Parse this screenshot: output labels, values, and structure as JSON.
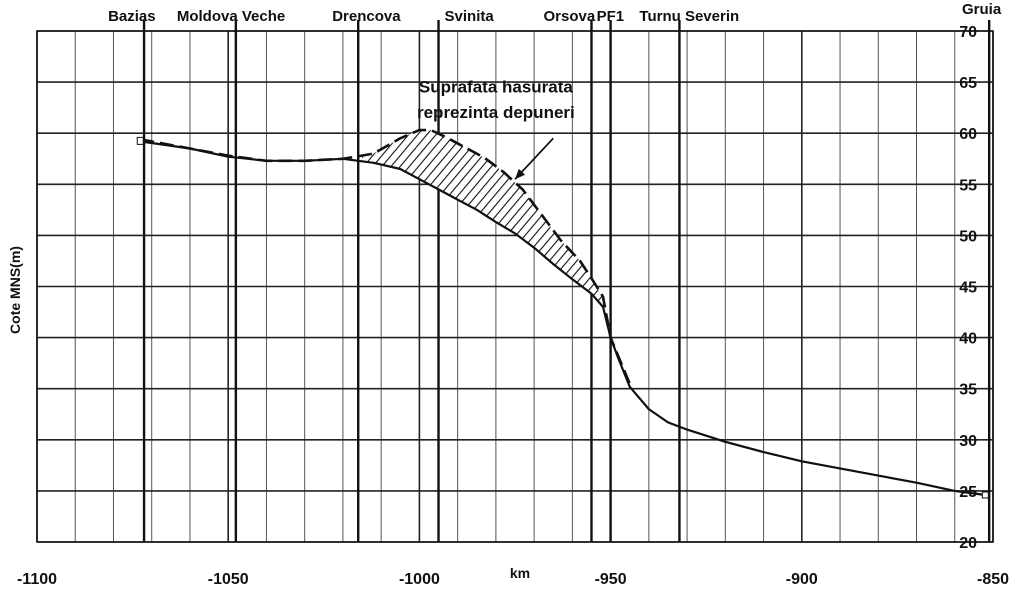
{
  "chart_data": {
    "type": "line",
    "title": "",
    "xlabel": "km",
    "ylabel": "Cote MNS(m)",
    "xlim": [
      -1100,
      -850
    ],
    "ylim": [
      20,
      70
    ],
    "x_ticks": [
      -1100,
      -1050,
      -1000,
      -950,
      -900,
      -850
    ],
    "y_ticks": [
      20,
      25,
      30,
      35,
      40,
      45,
      50,
      55,
      60,
      65,
      70
    ],
    "x_tick_labels": [
      "-1100",
      "-1050",
      "-1000",
      "-950",
      "-900",
      "-850"
    ],
    "y_tick_labels": [
      "20",
      "25",
      "30",
      "35",
      "40",
      "45",
      "50",
      "55",
      "60",
      "65",
      "70"
    ],
    "grid": true,
    "stations": [
      {
        "name": "Bazias",
        "km": -1072
      },
      {
        "name": "Moldova Veche",
        "km": -1048
      },
      {
        "name": "Drencova",
        "km": -1016
      },
      {
        "name": "Svinita",
        "km": -995
      },
      {
        "name": "Orsova",
        "km": -955
      },
      {
        "name": "PF1",
        "km": -950
      },
      {
        "name": "Turnu Severin",
        "km": -932
      },
      {
        "name": "Gruia",
        "km": -851
      }
    ],
    "series": [
      {
        "name": "",
        "style": "solid",
        "x": [
          -1073,
          -1060,
          -1050,
          -1040,
          -1030,
          -1020,
          -1012,
          -1005,
          -1000,
          -995,
          -990,
          -985,
          -980,
          -975,
          -970,
          -965,
          -960,
          -955,
          -952,
          -950,
          -948,
          -945,
          -940,
          -935,
          -930,
          -920,
          -910,
          -900,
          -890,
          -880,
          -870,
          -860,
          -852
        ],
        "y": [
          59.2,
          58.5,
          57.7,
          57.3,
          57.3,
          57.5,
          57.1,
          56.5,
          55.5,
          54.5,
          53.5,
          52.5,
          51.3,
          50.2,
          48.8,
          47.2,
          45.7,
          44.3,
          43.0,
          40.0,
          38.0,
          35.2,
          33.0,
          31.7,
          31.0,
          29.8,
          28.8,
          27.9,
          27.2,
          26.5,
          25.8,
          25.0,
          24.6
        ]
      },
      {
        "name": "",
        "style": "dashed",
        "x": [
          -1073,
          -1060,
          -1050,
          -1040,
          -1030,
          -1020,
          -1012,
          -1005,
          -1000,
          -997,
          -993,
          -988,
          -983,
          -978,
          -973,
          -968,
          -963,
          -958,
          -955,
          -952,
          -950,
          -948,
          -945
        ],
        "y": [
          59.4,
          58.5,
          57.8,
          57.3,
          57.3,
          57.5,
          58.0,
          59.5,
          60.3,
          60.3,
          59.6,
          58.6,
          57.6,
          56.2,
          54.5,
          52.0,
          49.5,
          47.5,
          45.8,
          44.0,
          40.0,
          38.2,
          35.5
        ]
      }
    ],
    "hatched_region": {
      "x_from": -1015,
      "x_to": -950
    },
    "annotations": [
      {
        "text": "Suprafata hasurata",
        "x": -980,
        "y": 64
      },
      {
        "text": "reprezinta depuneri",
        "x": -980,
        "y": 61.5
      }
    ],
    "annotation_arrow": {
      "from": [
        -965,
        59.5
      ],
      "to": [
        -975,
        55.5
      ]
    }
  }
}
